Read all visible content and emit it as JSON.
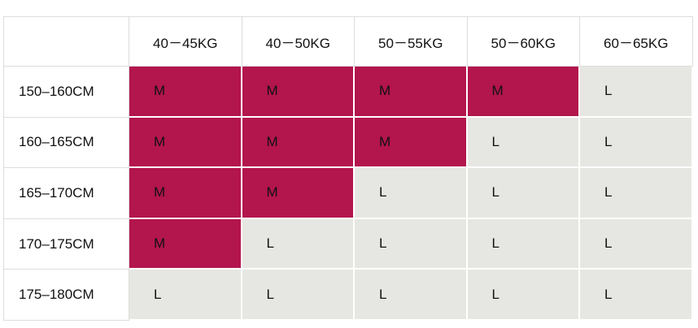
{
  "table": {
    "columns": [
      "40－45KG",
      "40－50KG",
      "50－55KG",
      "50－60KG",
      "60－65KG"
    ],
    "rows": [
      {
        "label": "150–160CM",
        "cells": [
          "M",
          "M",
          "M",
          "M",
          "L"
        ]
      },
      {
        "label": "160–165CM",
        "cells": [
          "M",
          "M",
          "M",
          "L",
          "L"
        ]
      },
      {
        "label": "165–170CM",
        "cells": [
          "M",
          "M",
          "L",
          "L",
          "L"
        ]
      },
      {
        "label": "170–175CM",
        "cells": [
          "M",
          "L",
          "L",
          "L",
          "L"
        ]
      },
      {
        "label": "175–180CM",
        "cells": [
          "L",
          "L",
          "L",
          "L",
          "L"
        ]
      }
    ],
    "colors": {
      "M": "#b3154d",
      "L": "#e6e6e2"
    }
  }
}
